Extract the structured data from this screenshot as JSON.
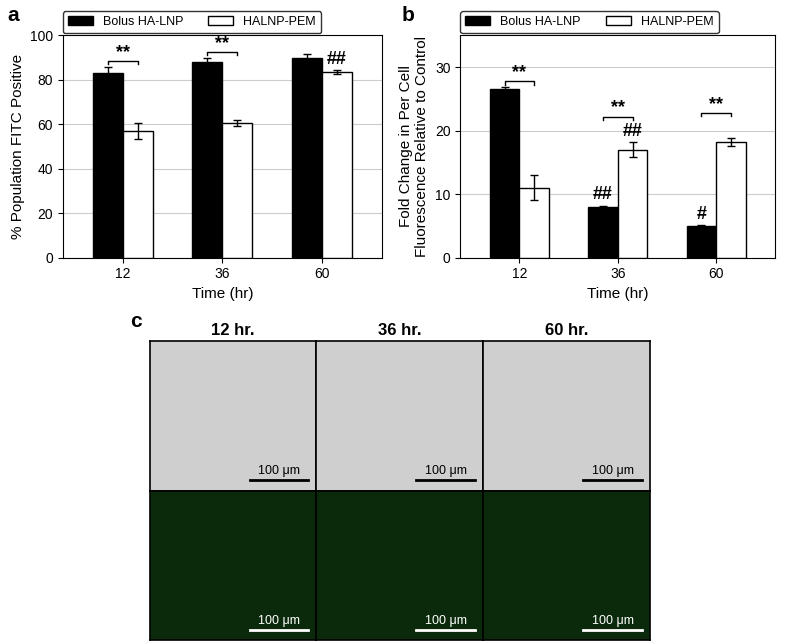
{
  "chart_data": [
    {
      "type": "bar",
      "panel_label": "a",
      "x_label": "Time (hr)",
      "y_label": "% Population FITC Positive",
      "categories": [
        "12",
        "36",
        "60"
      ],
      "series": [
        {
          "name": "Bolus HA-LNP",
          "color": "#000000",
          "values": [
            83,
            88,
            90
          ],
          "errors": [
            3,
            2,
            1.5
          ]
        },
        {
          "name": "HALNP-PEM",
          "color": "#ffffff",
          "values": [
            57,
            60.5,
            83.5
          ],
          "errors": [
            3.5,
            1.3,
            1
          ]
        }
      ],
      "ylim": [
        0,
        100
      ],
      "yticks": [
        0,
        20,
        40,
        60,
        80,
        100
      ],
      "grid": true,
      "legend": "upper left",
      "brackets": [
        {
          "category": "12",
          "text": "**"
        },
        {
          "category": "36",
          "text": "**"
        }
      ],
      "marks": [
        {
          "category": "60",
          "series": "HALNP-PEM",
          "text": "##"
        }
      ]
    },
    {
      "type": "bar",
      "panel_label": "b",
      "x_label": "Time (hr)",
      "y_label": "Fold Change in Per Cell\nFluorescence Relative to Control",
      "categories": [
        "12",
        "36",
        "60"
      ],
      "series": [
        {
          "name": "Bolus HA-LNP",
          "color": "#000000",
          "values": [
            26.5,
            8,
            5
          ],
          "errors": [
            0.4,
            0.2,
            0.1
          ]
        },
        {
          "name": "HALNP-PEM",
          "color": "#ffffff",
          "values": [
            11,
            17,
            18.2
          ],
          "errors": [
            2,
            1.2,
            0.6
          ]
        }
      ],
      "ylim": [
        0,
        35
      ],
      "yticks": [
        0,
        10,
        20,
        30
      ],
      "grid": true,
      "legend": "upper left",
      "brackets": [
        {
          "category": "12",
          "text": "**"
        },
        {
          "category": "36",
          "text": "**"
        },
        {
          "category": "60",
          "text": "**"
        }
      ],
      "marks": [
        {
          "category": "36",
          "series": "Bolus HA-LNP",
          "text": "##"
        },
        {
          "category": "36",
          "series": "HALNP-PEM",
          "text": "##"
        },
        {
          "category": "60",
          "series": "Bolus HA-LNP",
          "text": "#"
        }
      ]
    }
  ],
  "images": {
    "panel_label": "c",
    "columns": [
      "12 hr.",
      "36 hr.",
      "60 hr."
    ],
    "scale_bar": "100 μm"
  }
}
